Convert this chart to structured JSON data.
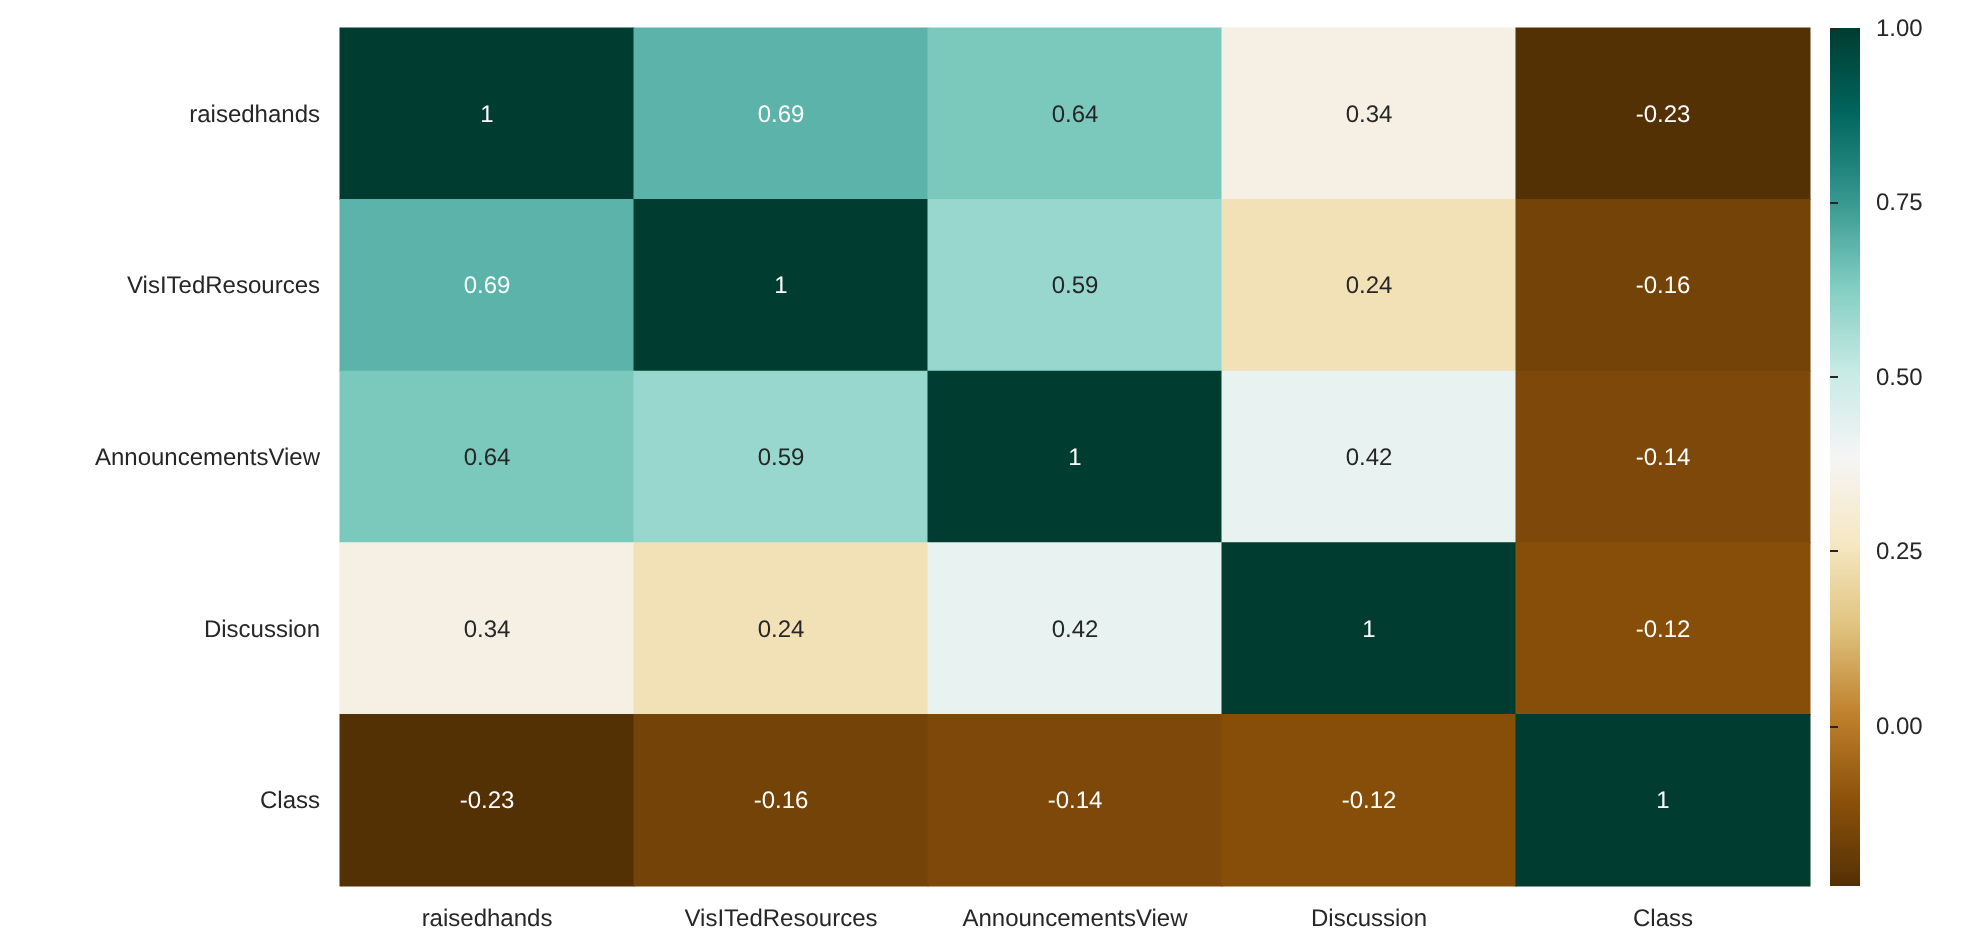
{
  "chart_data": {
    "type": "heatmap",
    "categories": [
      "raisedhands",
      "VisITedResources",
      "AnnouncementsView",
      "Discussion",
      "Class"
    ],
    "y_categories": [
      "raisedhands",
      "VisITedResources",
      "AnnouncementsView",
      "Discussion",
      "Class"
    ],
    "cells": [
      [
        1,
        0.69,
        0.64,
        0.34,
        -0.23
      ],
      [
        0.69,
        1,
        0.59,
        0.24,
        -0.16
      ],
      [
        0.64,
        0.59,
        1,
        0.42,
        -0.14
      ],
      [
        0.34,
        0.24,
        0.42,
        1,
        -0.12
      ],
      [
        -0.23,
        -0.16,
        -0.14,
        -0.12,
        1
      ]
    ],
    "cell_labels": [
      [
        "1",
        "0.69",
        "0.64",
        "0.34",
        "-0.23"
      ],
      [
        "0.69",
        "1",
        "0.59",
        "0.24",
        "-0.16"
      ],
      [
        "0.64",
        "0.59",
        "1",
        "0.42",
        "-0.14"
      ],
      [
        "0.34",
        "0.24",
        "0.42",
        "1",
        "-0.12"
      ],
      [
        "-0.23",
        "-0.16",
        "-0.14",
        "-0.12",
        "1"
      ]
    ],
    "clim": [
      -0.23,
      1
    ],
    "cticks": [
      {
        "value": 0,
        "label": "0.00"
      },
      {
        "value": 0.25,
        "label": "0.25"
      },
      {
        "value": 0.5,
        "label": "0.50"
      },
      {
        "value": 0.75,
        "label": "0.75"
      },
      {
        "value": 1,
        "label": "1.00"
      }
    ],
    "data_labels": true
  }
}
